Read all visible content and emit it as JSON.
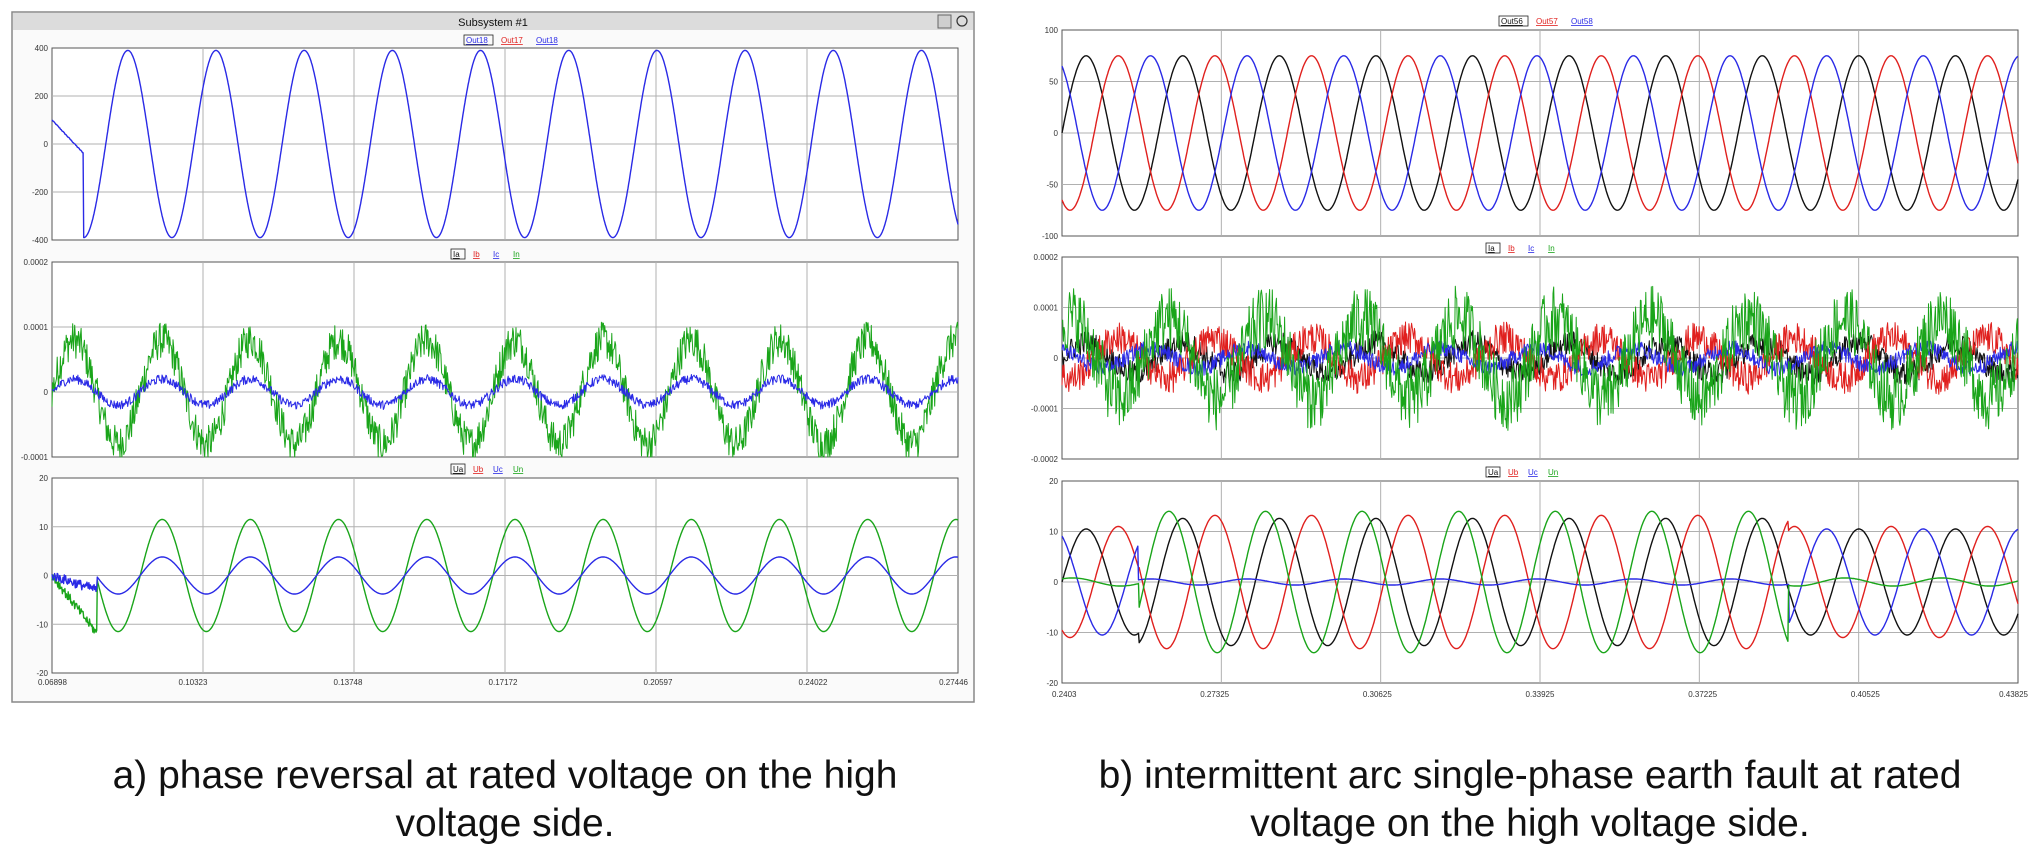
{
  "figure": {
    "panel_a": {
      "window_title": "Subsystem #1",
      "caption": "a) phase reversal at rated voltage on the high voltage side.",
      "x_ticks": [
        "0.06898",
        "0.10323",
        "0.13748",
        "0.17172",
        "0.20597",
        "0.24022",
        "0.27446"
      ]
    },
    "panel_b": {
      "caption": "b) intermittent arc single-phase earth fault at rated voltage on the high voltage side.",
      "x_ticks": [
        "0.2403",
        "0.27325",
        "0.30625",
        "0.33925",
        "0.37225",
        "0.40525",
        "0.43825"
      ]
    }
  },
  "colors": {
    "black": "#111111",
    "red": "#e0201e",
    "blue": "#2a2ae6",
    "green": "#1aa51a",
    "bg": "#ffffff",
    "grid": "#b0b0b0",
    "frame": "#888888"
  },
  "chart_data": [
    {
      "panel": "a",
      "type": "line",
      "title": "",
      "legend": [
        "Out18",
        "Out17",
        "Out18"
      ],
      "ylim": [
        -400,
        400
      ],
      "y_ticks": [
        "400",
        "200",
        "0",
        "-200",
        "-400"
      ],
      "x_range": [
        0.06898,
        0.27446
      ],
      "series": [
        {
          "name": "Out18",
          "color": "#2a2ae6",
          "amplitude": 390,
          "frequency_hz": 50
        }
      ]
    },
    {
      "panel": "a",
      "type": "line",
      "title": "",
      "legend": [
        "Ia",
        "Ib",
        "Ic",
        "In"
      ],
      "ylim": [
        -0.0001,
        0.0002
      ],
      "y_ticks": [
        "0.0002",
        "0.0001",
        "0",
        "-0.0001"
      ],
      "x_range": [
        0.06898,
        0.27446
      ],
      "series": [
        {
          "name": "In",
          "color": "#1aa51a",
          "amplitude": 8e-05,
          "frequency_hz": 50
        },
        {
          "name": "Ic",
          "color": "#2a2ae6",
          "amplitude": 2e-05,
          "frequency_hz": 50
        }
      ]
    },
    {
      "panel": "a",
      "type": "line",
      "title": "",
      "legend": [
        "Ua",
        "Ub",
        "Uc",
        "Un"
      ],
      "ylim": [
        -20,
        20
      ],
      "y_ticks": [
        "20",
        "10",
        "0",
        "-10",
        "-20"
      ],
      "x_range": [
        0.06898,
        0.27446
      ],
      "series": [
        {
          "name": "Un",
          "color": "#1aa51a",
          "amplitude": 11.5,
          "frequency_hz": 50
        },
        {
          "name": "Uc",
          "color": "#2a2ae6",
          "amplitude": 3.8,
          "frequency_hz": 50
        }
      ]
    },
    {
      "panel": "b",
      "type": "line",
      "title": "",
      "legend": [
        "Out56",
        "Out57",
        "Out58"
      ],
      "ylim": [
        -100,
        100
      ],
      "y_ticks": [
        "100",
        "50",
        "0",
        "-50",
        "-100"
      ],
      "x_range": [
        0.2403,
        0.43825
      ],
      "series": [
        {
          "name": "Out56",
          "color": "#111111",
          "amplitude": 75,
          "frequency_hz": 50
        },
        {
          "name": "Out57",
          "color": "#e0201e",
          "amplitude": 75,
          "frequency_hz": 50
        },
        {
          "name": "Out58",
          "color": "#2a2ae6",
          "amplitude": 75,
          "frequency_hz": 50
        }
      ]
    },
    {
      "panel": "b",
      "type": "line",
      "title": "",
      "legend": [
        "Ia",
        "Ib",
        "Ic",
        "In"
      ],
      "ylim": [
        -0.0002,
        0.0002
      ],
      "y_ticks": [
        "0.0002",
        "0.0001",
        "0",
        "-0.0001",
        "-0.0002"
      ],
      "x_range": [
        0.2403,
        0.43825
      ],
      "series": [
        {
          "name": "Ia",
          "color": "#111111",
          "amplitude": 3e-05,
          "frequency_hz": 50
        },
        {
          "name": "Ib",
          "color": "#e0201e",
          "amplitude": 4e-05,
          "frequency_hz": 50
        },
        {
          "name": "Ic",
          "color": "#2a2ae6",
          "amplitude": 2e-05,
          "frequency_hz": 50
        },
        {
          "name": "In",
          "color": "#1aa51a",
          "amplitude": 8e-05,
          "frequency_hz": 50
        }
      ]
    },
    {
      "panel": "b",
      "type": "line",
      "title": "",
      "legend": [
        "Ua",
        "Ub",
        "Uc",
        "Un"
      ],
      "ylim": [
        -20,
        20
      ],
      "y_ticks": [
        "20",
        "10",
        "0",
        "-10",
        "-20"
      ],
      "x_range": [
        0.2403,
        0.43825
      ],
      "series": [
        {
          "name": "Ua",
          "color": "#111111",
          "amplitude": 10.5,
          "frequency_hz": 50
        },
        {
          "name": "Ub",
          "color": "#e0201e",
          "amplitude": 11,
          "frequency_hz": 50
        },
        {
          "name": "Uc",
          "color": "#2a2ae6",
          "amplitude": 10.5,
          "frequency_hz": 50
        },
        {
          "name": "Un",
          "color": "#1aa51a",
          "amplitude": 14,
          "frequency_hz": 50
        }
      ]
    }
  ]
}
